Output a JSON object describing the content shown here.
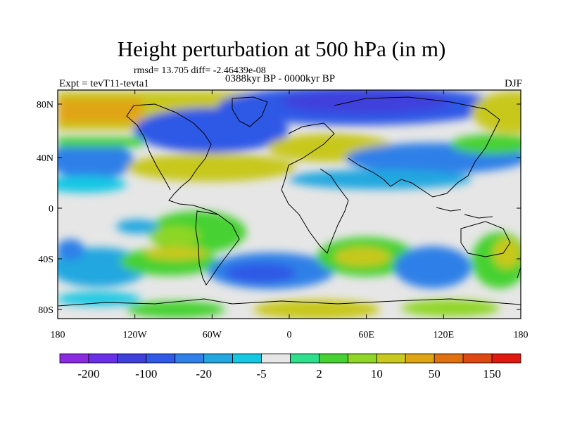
{
  "title": "Height perturbation at 500 hPa (in m)",
  "rmsd_text": "rmsd= 13.705 diff= -2.46439e-08",
  "expt_text": "Expt = tevT11-tevta1",
  "period_text": "0388kyr BP - 0000kyr BP",
  "season_text": "DJF",
  "lat_ticks": [
    "80N",
    "40N",
    "0",
    "40S",
    "80S"
  ],
  "lon_ticks": [
    "180",
    "120W",
    "60W",
    "0",
    "60E",
    "120E",
    "180"
  ],
  "colorbar": {
    "colors": [
      "#8a2be2",
      "#6a2fe8",
      "#3f3fdc",
      "#2f59e6",
      "#2f80e8",
      "#23a7e0",
      "#14c8e4",
      "#e6e6e6",
      "#2ee08c",
      "#47d132",
      "#8fd626",
      "#c8c81e",
      "#e0a515",
      "#e07010",
      "#e04812",
      "#e01810"
    ],
    "labels": [
      "-200",
      "-100",
      "-20",
      "-5",
      "2",
      "10",
      "50",
      "150"
    ]
  }
}
